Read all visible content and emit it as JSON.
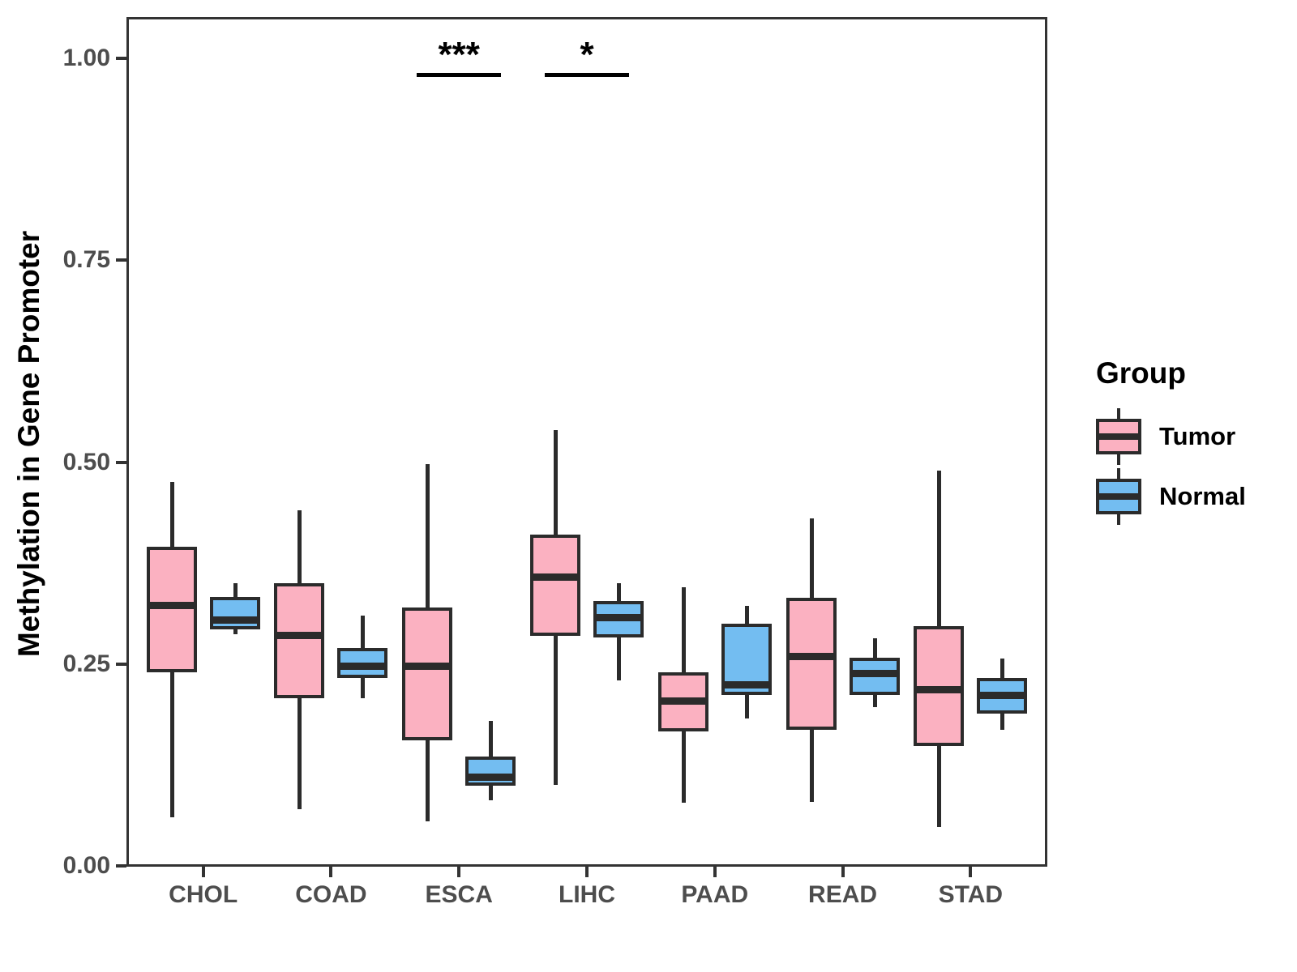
{
  "figure": {
    "background": "#FFFFFF"
  },
  "chart_data": {
    "type": "boxplot",
    "title": "",
    "xlabel": "",
    "ylabel": "Methylation in Gene Promoter",
    "categories": [
      "CHOL",
      "COAD",
      "ESCA",
      "LIHC",
      "PAAD",
      "READ",
      "STAD"
    ],
    "y_axis": {
      "ticks": [
        1.0,
        0.75,
        0.5,
        0.25,
        0.0
      ],
      "tick_labels": [
        "1.00",
        "0.75",
        "0.50",
        "0.25",
        "0.00"
      ],
      "range": [
        0,
        1.05
      ]
    },
    "grid": "off",
    "legend": {
      "title": "Group",
      "position": "right"
    },
    "series": [
      {
        "name": "Tumor",
        "fill_color": "#FBB1C1",
        "boxes": [
          {
            "category": "CHOL",
            "whisker_low": 0.06,
            "q1": 0.24,
            "median": 0.323,
            "q3": 0.395,
            "whisker_high": 0.475
          },
          {
            "category": "COAD",
            "whisker_low": 0.07,
            "q1": 0.208,
            "median": 0.286,
            "q3": 0.35,
            "whisker_high": 0.44
          },
          {
            "category": "ESCA",
            "whisker_low": 0.055,
            "q1": 0.155,
            "median": 0.248,
            "q3": 0.32,
            "whisker_high": 0.497
          },
          {
            "category": "LIHC",
            "whisker_low": 0.1,
            "q1": 0.285,
            "median": 0.358,
            "q3": 0.41,
            "whisker_high": 0.54
          },
          {
            "category": "PAAD",
            "whisker_low": 0.078,
            "q1": 0.166,
            "median": 0.205,
            "q3": 0.24,
            "whisker_high": 0.345
          },
          {
            "category": "READ",
            "whisker_low": 0.079,
            "q1": 0.168,
            "median": 0.26,
            "q3": 0.332,
            "whisker_high": 0.43
          },
          {
            "category": "STAD",
            "whisker_low": 0.048,
            "q1": 0.148,
            "median": 0.219,
            "q3": 0.297,
            "whisker_high": 0.489
          }
        ]
      },
      {
        "name": "Normal",
        "fill_color": "#73BDF1",
        "boxes": [
          {
            "category": "CHOL",
            "whisker_low": 0.287,
            "q1": 0.293,
            "median": 0.305,
            "q3": 0.333,
            "whisker_high": 0.35
          },
          {
            "category": "COAD",
            "whisker_low": 0.208,
            "q1": 0.233,
            "median": 0.248,
            "q3": 0.27,
            "whisker_high": 0.31
          },
          {
            "category": "ESCA",
            "whisker_low": 0.081,
            "q1": 0.099,
            "median": 0.11,
            "q3": 0.135,
            "whisker_high": 0.18
          },
          {
            "category": "LIHC",
            "whisker_low": 0.23,
            "q1": 0.283,
            "median": 0.308,
            "q3": 0.328,
            "whisker_high": 0.35
          },
          {
            "category": "PAAD",
            "whisker_low": 0.183,
            "q1": 0.212,
            "median": 0.225,
            "q3": 0.3,
            "whisker_high": 0.322
          },
          {
            "category": "READ",
            "whisker_low": 0.197,
            "q1": 0.212,
            "median": 0.239,
            "q3": 0.258,
            "whisker_high": 0.282
          },
          {
            "category": "STAD",
            "whisker_low": 0.168,
            "q1": 0.189,
            "median": 0.212,
            "q3": 0.233,
            "whisker_high": 0.257
          }
        ]
      }
    ],
    "significance": [
      {
        "category": "ESCA",
        "label": "***"
      },
      {
        "category": "LIHC",
        "label": "*"
      }
    ],
    "colors": {
      "box_border": "#2B2B2B",
      "panel_border": "#333333",
      "axis_tick": "#333333",
      "tick_label": "#4D4D4D",
      "axis_title": "#000000",
      "significance": "#000000"
    }
  }
}
